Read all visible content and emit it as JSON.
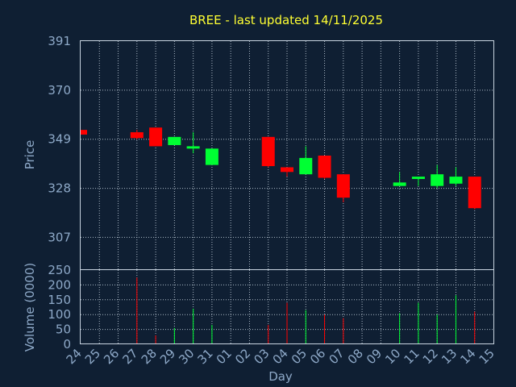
{
  "chart_data": {
    "type": "candlestick",
    "title": "BREE - last updated 14/11/2025",
    "xlabel": "Day",
    "price_panel": {
      "ylabel": "Price",
      "ylim": [
        293,
        391
      ],
      "yticks": [
        391,
        370,
        349,
        328,
        307
      ]
    },
    "volume_panel": {
      "ylabel": "Volume (0000)",
      "ylim": [
        0,
        250
      ],
      "yticks": [
        250,
        200,
        150,
        100,
        50,
        0
      ]
    },
    "x_tick_labels": [
      "24",
      "25",
      "26",
      "27",
      "28",
      "29",
      "30",
      "31",
      "01",
      "02",
      "03",
      "04",
      "05",
      "06",
      "07",
      "08",
      "09",
      "10",
      "11",
      "12",
      "13",
      "14",
      "15"
    ],
    "grid": true,
    "colors": {
      "up": "#00ff33",
      "down": "#ff0000",
      "background": "#0f1f33",
      "title": "#ffff33",
      "axis_text": "#8ea9c8"
    },
    "candles": [
      {
        "day": "24",
        "open": 353.0,
        "high": 353.0,
        "low": 351.0,
        "close": 351.0,
        "volume": 0
      },
      {
        "day": "27",
        "open": 352.0,
        "high": 353.0,
        "low": 349.0,
        "close": 349.5,
        "volume": 225
      },
      {
        "day": "28",
        "open": 354.0,
        "high": 354.0,
        "low": 346.0,
        "close": 346.0,
        "volume": 30
      },
      {
        "day": "29",
        "open": 346.5,
        "high": 350.0,
        "low": 346.5,
        "close": 350.0,
        "volume": 55
      },
      {
        "day": "30",
        "open": 345.0,
        "high": 352.0,
        "low": 343.0,
        "close": 346.0,
        "volume": 120
      },
      {
        "day": "31",
        "open": 338.0,
        "high": 345.0,
        "low": 338.0,
        "close": 345.0,
        "volume": 65
      },
      {
        "day": "03",
        "open": 350.0,
        "high": 350.0,
        "low": 337.0,
        "close": 337.5,
        "volume": 65
      },
      {
        "day": "04",
        "open": 337.0,
        "high": 337.0,
        "low": 333.0,
        "close": 335.0,
        "volume": 140
      },
      {
        "day": "05",
        "open": 334.0,
        "high": 346.0,
        "low": 334.0,
        "close": 341.0,
        "volume": 115
      },
      {
        "day": "06",
        "open": 342.0,
        "high": 342.0,
        "low": 332.0,
        "close": 332.5,
        "volume": 100
      },
      {
        "day": "07",
        "open": 334.0,
        "high": 334.0,
        "low": 322.0,
        "close": 324.0,
        "volume": 88
      },
      {
        "day": "10",
        "open": 329.0,
        "high": 335.0,
        "low": 329.0,
        "close": 330.5,
        "volume": 105
      },
      {
        "day": "11",
        "open": 332.0,
        "high": 333.0,
        "low": 329.0,
        "close": 333.0,
        "volume": 140
      },
      {
        "day": "12",
        "open": 329.0,
        "high": 338.0,
        "low": 328.0,
        "close": 334.0,
        "volume": 100
      },
      {
        "day": "13",
        "open": 330.0,
        "high": 337.0,
        "low": 329.0,
        "close": 333.0,
        "volume": 165
      },
      {
        "day": "14",
        "open": 333.0,
        "high": 333.0,
        "low": 319.0,
        "close": 319.5,
        "volume": 110
      }
    ]
  }
}
